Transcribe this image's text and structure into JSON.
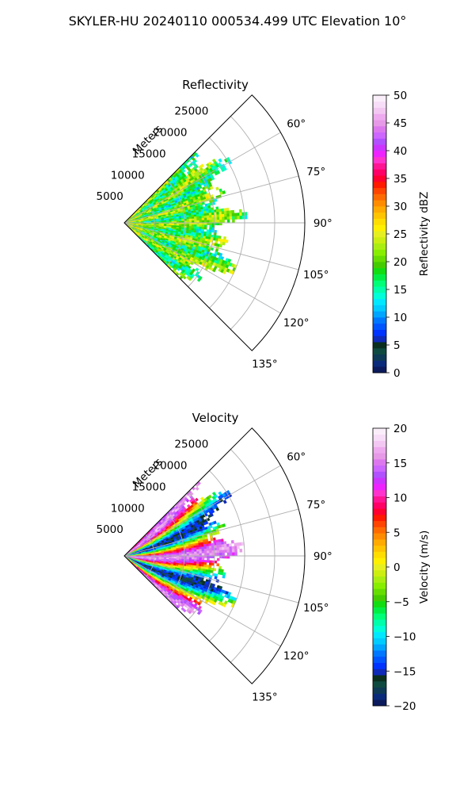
{
  "figure": {
    "title": "SKYLER-HU  20240110  000534.499 UTC Elevation 10°"
  },
  "chart_data": [
    {
      "type": "heatmap",
      "projection": "polar-sector",
      "title": "Reflectivity",
      "range_label": "Meters",
      "range_ticks": [
        5000,
        10000,
        15000,
        20000,
        25000
      ],
      "range_tick_labels": [
        "5000",
        "10000",
        "15000",
        "20000",
        "25000"
      ],
      "range_lim": [
        0,
        30000
      ],
      "azimuth_lim_deg": [
        45,
        135
      ],
      "azimuth_ticks_deg": [
        60,
        75,
        90,
        105,
        120,
        135
      ],
      "azimuth_tick_labels": [
        "60°",
        "75°",
        "90°",
        "105°",
        "120°",
        "135°"
      ],
      "data_azimuth_range_deg": [
        45,
        133
      ],
      "data_range_max_m": 20000,
      "grid": true,
      "colorbar": {
        "label": "Reflectivity dBZ",
        "min": 0,
        "max": 50,
        "ticks": [
          0,
          5,
          10,
          15,
          20,
          25,
          30,
          35,
          40,
          45,
          50
        ],
        "tick_labels": [
          "0",
          "5",
          "10",
          "15",
          "20",
          "25",
          "30",
          "35",
          "40",
          "45",
          "50"
        ],
        "colors": [
          "#0b1a5c",
          "#0a2a7a",
          "#0e3a55",
          "#0f4a40",
          "#0a2f1f",
          "#0f2ab8",
          "#0033ff",
          "#0055ff",
          "#0077ff",
          "#00a5ff",
          "#00ccff",
          "#00e8ff",
          "#00ffd8",
          "#00ffaa",
          "#00ff77",
          "#00ee44",
          "#11dd11",
          "#44cc00",
          "#66dd00",
          "#88ee00",
          "#aaee11",
          "#ccee11",
          "#e6f020",
          "#fff000",
          "#ffdd00",
          "#ffc400",
          "#ffaa00",
          "#ff8c00",
          "#ff6a00",
          "#ff4400",
          "#ff1a00",
          "#ff0030",
          "#ff0066",
          "#ff1493",
          "#ff33cc",
          "#ee22ff",
          "#cc33ff",
          "#b050ff",
          "#cc66ff",
          "#dd77ee",
          "#e699e6",
          "#eeaaee",
          "#f2c8f2",
          "#f8ddf8",
          "#fbeefb"
        ]
      },
      "field_description_levels_dbz": {
        "typical": 19,
        "spread": 5
      }
    },
    {
      "type": "heatmap",
      "projection": "polar-sector",
      "title": "Velocity",
      "range_label": "Meters",
      "range_ticks": [
        5000,
        10000,
        15000,
        20000,
        25000
      ],
      "range_tick_labels": [
        "5000",
        "10000",
        "15000",
        "20000",
        "25000"
      ],
      "range_lim": [
        0,
        30000
      ],
      "azimuth_lim_deg": [
        45,
        135
      ],
      "azimuth_ticks_deg": [
        60,
        75,
        90,
        105,
        120,
        135
      ],
      "azimuth_tick_labels": [
        "60°",
        "75°",
        "90°",
        "105°",
        "120°",
        "135°"
      ],
      "data_azimuth_range_deg": [
        45,
        133
      ],
      "data_range_max_m": 20000,
      "grid": true,
      "colorbar": {
        "label": "Velocity (m/s)",
        "min": -20,
        "max": 20,
        "ticks": [
          -20,
          -15,
          -10,
          -5,
          0,
          5,
          10,
          15,
          20
        ],
        "tick_labels": [
          "−20",
          "−15",
          "−10",
          "−5",
          "0",
          "5",
          "10",
          "15",
          "20"
        ],
        "colors": [
          "#0b1a5c",
          "#0a2a7a",
          "#0e3a55",
          "#0f4a40",
          "#0a2f1f",
          "#0f2ab8",
          "#0033ff",
          "#0055ff",
          "#0077ff",
          "#00a5ff",
          "#00ccff",
          "#00e8ff",
          "#00ffd8",
          "#00ffaa",
          "#00ff77",
          "#00ee44",
          "#11dd11",
          "#44cc00",
          "#66dd00",
          "#88ee00",
          "#aaee11",
          "#ccee11",
          "#e6f020",
          "#fff000",
          "#ffdd00",
          "#ffc400",
          "#ffaa00",
          "#ff8c00",
          "#ff6a00",
          "#ff4400",
          "#ff1a00",
          "#ff0030",
          "#ff0066",
          "#ff1493",
          "#ff33cc",
          "#ee22ff",
          "#cc33ff",
          "#b050ff",
          "#cc66ff",
          "#dd77ee",
          "#e699e6",
          "#eeaaee",
          "#f2c8f2",
          "#f8ddf8",
          "#fbeefb"
        ]
      }
    }
  ]
}
